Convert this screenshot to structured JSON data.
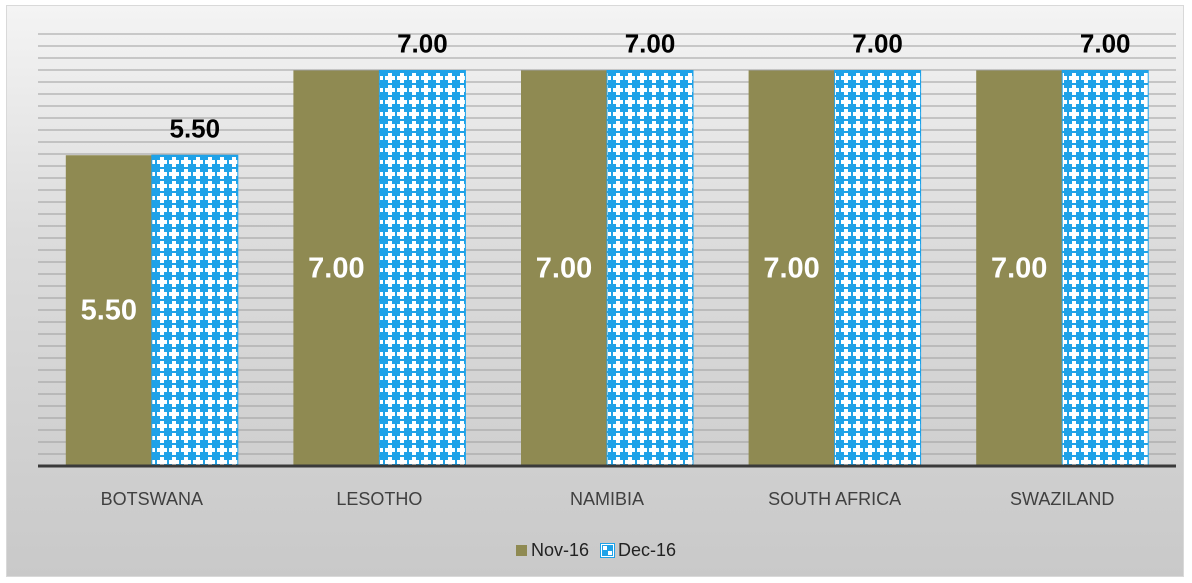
{
  "chart_data": {
    "type": "bar",
    "categories": [
      "BOTSWANA",
      "LESOTHO",
      "NAMIBIA",
      "SOUTH AFRICA",
      "SWAZILAND"
    ],
    "series": [
      {
        "name": "Nov-16",
        "values": [
          5.5,
          7.0,
          7.0,
          7.0,
          7.0
        ],
        "color": "#8f8a52",
        "label_position": "inside",
        "label_color": "#ffffff"
      },
      {
        "name": "Dec-16",
        "values": [
          5.5,
          7.0,
          7.0,
          7.0,
          7.0
        ],
        "color": "#1fa2e8",
        "pattern": "white cross pattern on blue",
        "label_position": "above",
        "label_color": "#000000"
      }
    ],
    "data_labels": {
      "Nov-16": [
        "5.50",
        "7.00",
        "7.00",
        "7.00",
        "7.00"
      ],
      "Dec-16": [
        "5.50",
        "7.00",
        "7.00",
        "7.00",
        "7.00"
      ]
    },
    "title": "",
    "xlabel": "",
    "ylabel": "",
    "ylim": [
      0,
      7
    ],
    "grid": true,
    "legend": "bottom-center"
  }
}
